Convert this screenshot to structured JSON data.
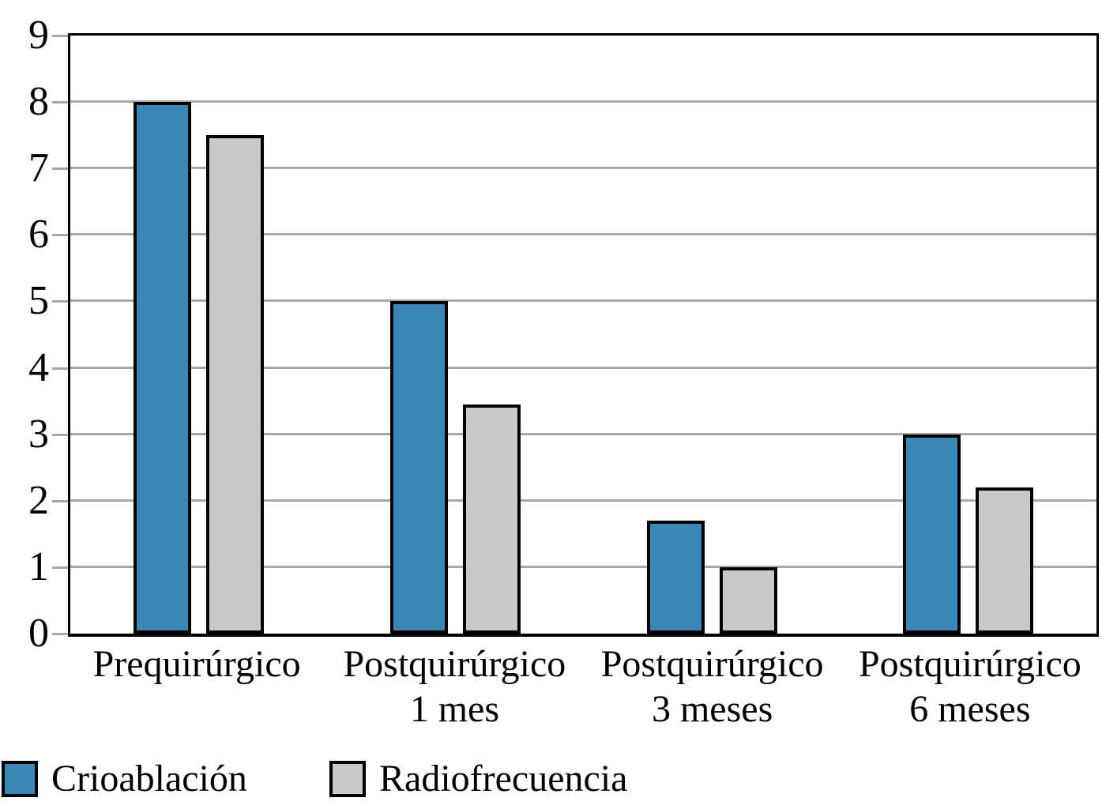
{
  "chart_data": {
    "type": "bar",
    "title": "",
    "xlabel": "",
    "ylabel": "",
    "categories": [
      "Prequirúrgico",
      "Postquirúrgico 1 mes",
      "Postquirúrgico 3 meses",
      "Postquirúrgico 6 meses"
    ],
    "category_lines": [
      [
        "Prequirúrgico"
      ],
      [
        "Postquirúrgico",
        "1 mes"
      ],
      [
        "Postquirúrgico",
        "3 meses"
      ],
      [
        "Postquirúrgico",
        "6 meses"
      ]
    ],
    "series": [
      {
        "name": "Crioablación",
        "color": "#3C88B5",
        "values": [
          8,
          5,
          1.7,
          3
        ]
      },
      {
        "name": "Radiofrecuencia",
        "color": "#C9C9C9",
        "values": [
          7.5,
          3.45,
          1,
          2.2
        ]
      }
    ],
    "ylim": [
      0,
      9
    ],
    "yticks": [
      0,
      1,
      2,
      3,
      4,
      5,
      6,
      7,
      8,
      9
    ],
    "grid": true,
    "legend_position": "bottom-left"
  },
  "style": {
    "background": "#FFFFFF",
    "axis_color": "#000000",
    "grid_color": "#A8A8A8",
    "bar_border_color": "#000000",
    "text_color": "#000000"
  }
}
